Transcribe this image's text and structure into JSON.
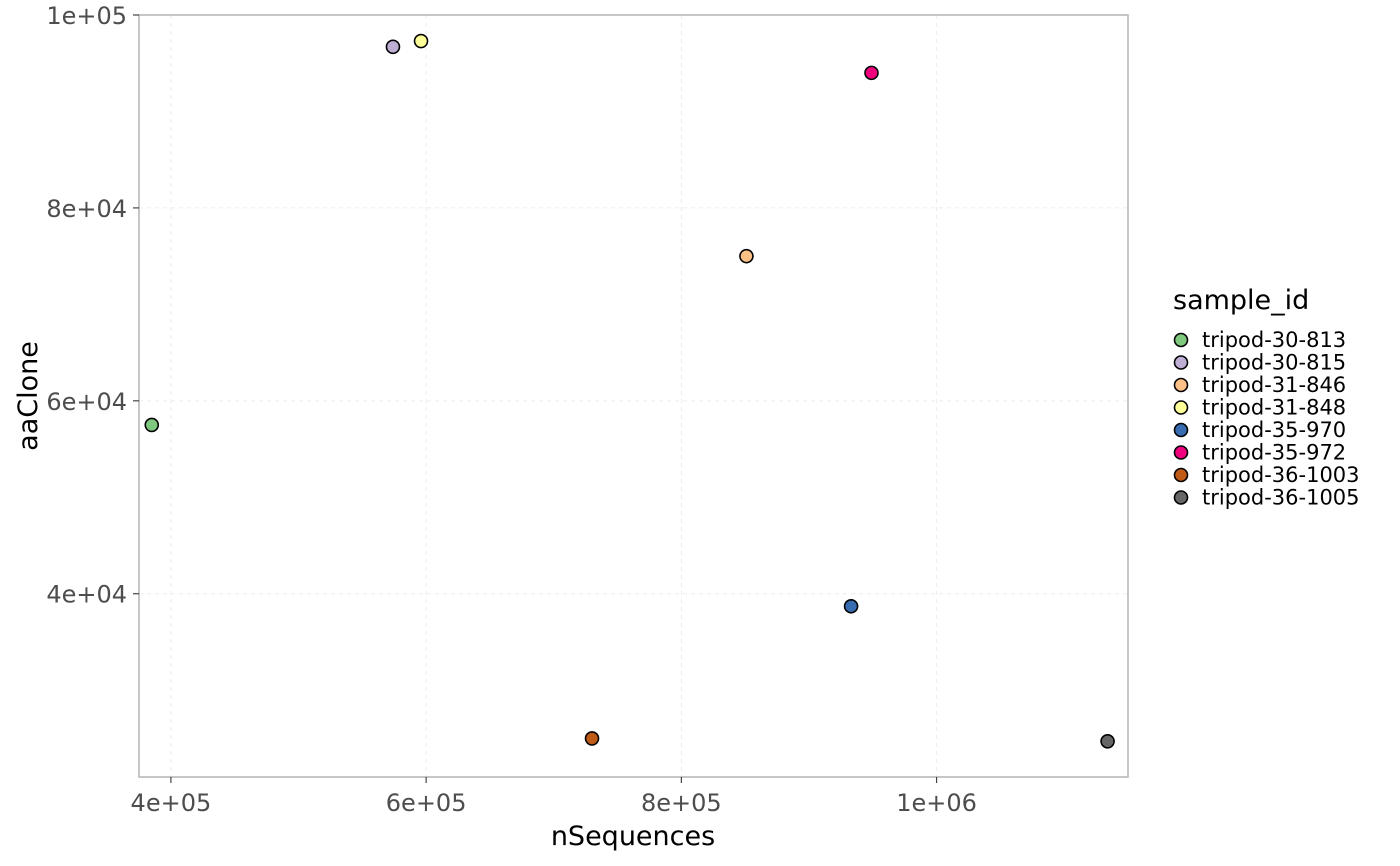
{
  "chart_data": {
    "type": "scatter",
    "title": "",
    "xlabel": "nSequences",
    "ylabel": "aaClone",
    "xlim": [
      375000,
      1150000
    ],
    "ylim": [
      21000,
      100000
    ],
    "x_ticks": [
      400000,
      600000,
      800000,
      1000000
    ],
    "x_tick_labels": [
      "4e+05",
      "6e+05",
      "8e+05",
      "1e+06"
    ],
    "y_ticks": [
      40000,
      60000,
      80000,
      100000
    ],
    "y_tick_labels": [
      "4e+04",
      "6e+04",
      "8e+04",
      "1e+05"
    ],
    "grid": true,
    "legend": {
      "title": "sample_id",
      "placement": "right"
    },
    "series": [
      {
        "name": "tripod-30-813",
        "color": "#7fc97f",
        "points": [
          {
            "x": 385000,
            "y": 57500
          }
        ]
      },
      {
        "name": "tripod-30-815",
        "color": "#beaed4",
        "points": [
          {
            "x": 574000,
            "y": 96700
          }
        ]
      },
      {
        "name": "tripod-31-846",
        "color": "#fdc086",
        "points": [
          {
            "x": 851000,
            "y": 75000
          }
        ]
      },
      {
        "name": "tripod-31-848",
        "color": "#ffff99",
        "points": [
          {
            "x": 596000,
            "y": 97300
          }
        ]
      },
      {
        "name": "tripod-35-970",
        "color": "#386cb0",
        "points": [
          {
            "x": 933000,
            "y": 38700
          }
        ]
      },
      {
        "name": "tripod-35-972",
        "color": "#f0027f",
        "points": [
          {
            "x": 949000,
            "y": 94000
          }
        ]
      },
      {
        "name": "tripod-36-1003",
        "color": "#bf5b17",
        "points": [
          {
            "x": 730000,
            "y": 25000
          }
        ]
      },
      {
        "name": "tripod-36-1005",
        "color": "#666666",
        "points": [
          {
            "x": 1134000,
            "y": 24700
          }
        ]
      }
    ]
  }
}
